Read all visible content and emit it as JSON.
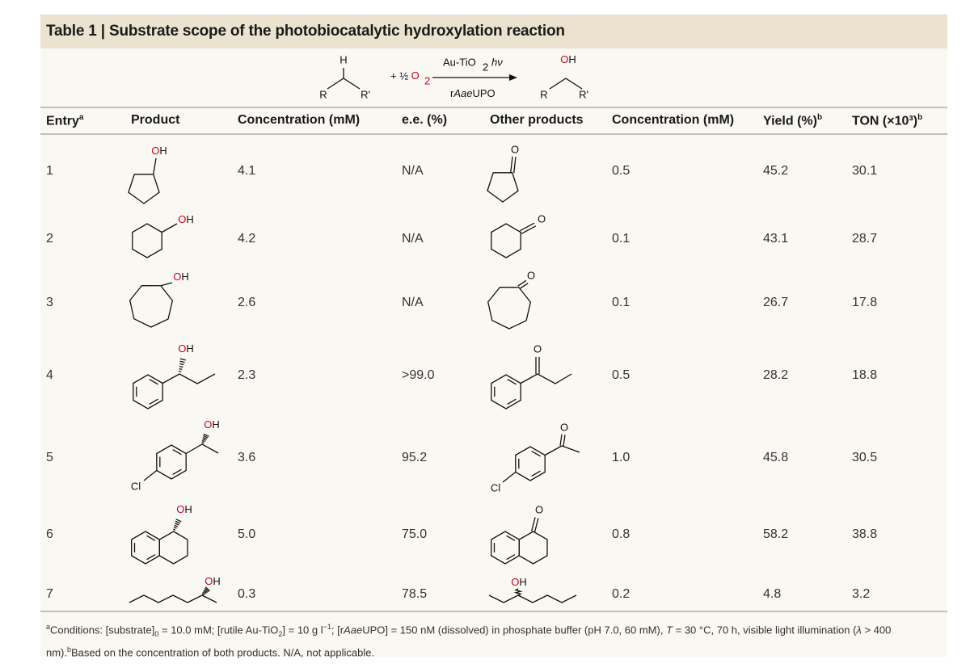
{
  "title": {
    "label": "Table 1",
    "separator": "|",
    "text": "Substrate scope of the photobiocatalytic hydroxylation reaction"
  },
  "scheme": {
    "reactant": {
      "h": "H",
      "r": "R",
      "r_prime": "R'"
    },
    "oxidant": {
      "text": "+ ½ O",
      "sub": "2"
    },
    "catalyst": {
      "text": "Au-TiO",
      "sub": "2",
      "light": "hν"
    },
    "enzyme": {
      "prefix": "r",
      "italic": "Aae",
      "suffix": "UPO"
    },
    "product": {
      "oh": "OH",
      "r": "R",
      "r_prime": "R'"
    }
  },
  "columns": [
    {
      "text": "Entry",
      "sup": "a"
    },
    {
      "text": "Product"
    },
    {
      "text": "Concentration (mM)"
    },
    {
      "text": "e.e. (%)"
    },
    {
      "text": "Other products"
    },
    {
      "text": "Concentration (mM)"
    },
    {
      "text": "Yield (%)",
      "sup": "b"
    },
    {
      "text": "TON (×10³)",
      "sup": "b"
    }
  ],
  "rows": [
    {
      "entry": "1",
      "product_labels": [
        "OH"
      ],
      "concentration": "4.1",
      "ee": "N/A",
      "other_labels": [
        "O"
      ],
      "other_concentration": "0.5",
      "yield": "45.2",
      "ton": "30.1"
    },
    {
      "entry": "2",
      "product_labels": [
        "OH"
      ],
      "concentration": "4.2",
      "ee": "N/A",
      "other_labels": [
        "O"
      ],
      "other_concentration": "0.1",
      "yield": "43.1",
      "ton": "28.7"
    },
    {
      "entry": "3",
      "product_labels": [
        "OH"
      ],
      "concentration": "2.6",
      "ee": "N/A",
      "other_labels": [
        "O"
      ],
      "other_concentration": "0.1",
      "yield": "26.7",
      "ton": "17.8"
    },
    {
      "entry": "4",
      "product_labels": [
        "OH"
      ],
      "concentration": "2.3",
      "ee": ">99.0",
      "other_labels": [
        "O"
      ],
      "other_concentration": "0.5",
      "yield": "28.2",
      "ton": "18.8"
    },
    {
      "entry": "5",
      "product_labels": [
        "OH",
        "Cl"
      ],
      "concentration": "3.6",
      "ee": "95.2",
      "other_labels": [
        "O",
        "Cl"
      ],
      "other_concentration": "1.0",
      "yield": "45.8",
      "ton": "30.5"
    },
    {
      "entry": "6",
      "product_labels": [
        "OH"
      ],
      "concentration": "5.0",
      "ee": "75.0",
      "other_labels": [
        "O"
      ],
      "other_concentration": "0.8",
      "yield": "58.2",
      "ton": "38.8"
    },
    {
      "entry": "7",
      "product_labels": [
        "OH"
      ],
      "concentration": "0.3",
      "ee": "78.5",
      "other_labels": [
        "OH"
      ],
      "other_concentration": "0.2",
      "yield": "4.8",
      "ton": "3.2"
    }
  ],
  "footnote": [
    {
      "text": "a",
      "sup": true
    },
    {
      "text": "Conditions: [substrate]"
    },
    {
      "text": "0",
      "sub": true
    },
    {
      "text": " = 10.0 mM; [rutile Au-TiO"
    },
    {
      "text": "2",
      "sub": true
    },
    {
      "text": "] = 10 g l"
    },
    {
      "text": "−1",
      "sup": true
    },
    {
      "text": "; [r"
    },
    {
      "text": "Aae",
      "italic": true
    },
    {
      "text": "UPO] = 150 nM (dissolved) in phosphate buffer (pH 7.0, 60 mM), "
    },
    {
      "text": "T",
      "italic": true
    },
    {
      "text": " = 30 °C, 70 h, visible light illumination ("
    },
    {
      "text": "λ",
      "italic": true
    },
    {
      "text": " > 400 nm)."
    },
    {
      "text": "b",
      "sup": true
    },
    {
      "text": "Based on the concentration of both products. N/A, not applicable."
    }
  ]
}
